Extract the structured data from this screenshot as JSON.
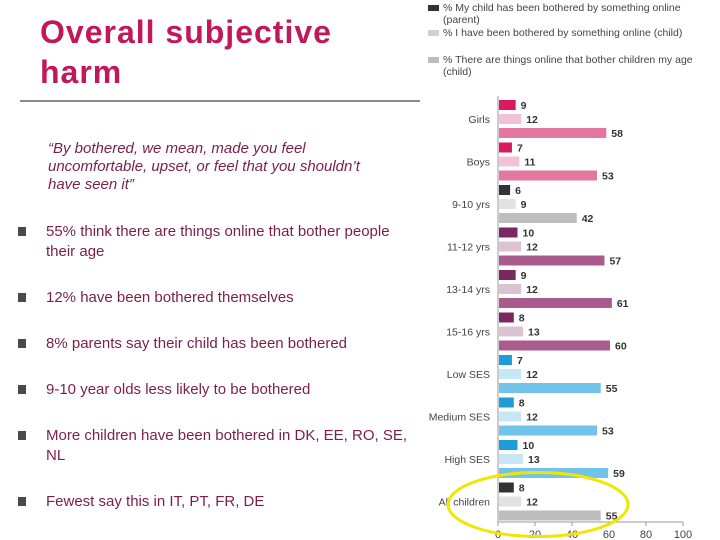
{
  "title": "Overall subjective harm",
  "quote": "“By bothered, we mean, made you feel uncomfortable, upset, or feel that you shouldn’t have seen it”",
  "bullets": [
    "55% think there are things online that bother people their age",
    "12% have been bothered themselves",
    "8% parents say their child has been bothered",
    "9-10 year olds less likely to be bothered",
    "More children have been bothered in DK, EE, RO, SE, NL",
    "Fewest say this in IT, PT, FR, DE"
  ],
  "chart_data": {
    "type": "bar",
    "orientation": "horizontal",
    "legend_position": "top",
    "series": [
      {
        "name": "% My child has been bothered by something online (parent)",
        "legend_color": "#333333",
        "values": [
          9,
          7,
          6,
          10,
          9,
          8,
          7,
          8,
          10,
          8
        ]
      },
      {
        "name": "% I have been bothered by something online (child)",
        "legend_color": "#d0d0d0",
        "values": [
          12,
          11,
          9,
          12,
          12,
          13,
          12,
          12,
          13,
          12
        ]
      },
      {
        "name": "% There are things online that bother children my age (child)",
        "legend_color": "#bcbcbc",
        "values": [
          58,
          53,
          42,
          57,
          61,
          60,
          55,
          53,
          59,
          55
        ]
      }
    ],
    "categories": [
      "Girls",
      "Boys",
      "9-10 yrs",
      "11-12 yrs",
      "13-14 yrs",
      "15-16 yrs",
      "Low SES",
      "Medium SES",
      "High SES",
      "All children"
    ],
    "group_colors": [
      [
        "#d81b60",
        "#f3c1d4",
        "#e3779f"
      ],
      [
        "#d81b60",
        "#f3c1d4",
        "#e3779f"
      ],
      [
        "#333333",
        "#e2e2e2",
        "#bdbdbd"
      ],
      [
        "#7a2860",
        "#dcc3d4",
        "#a95b8d"
      ],
      [
        "#7a2860",
        "#dcc3d4",
        "#a95b8d"
      ],
      [
        "#7a2860",
        "#dcc3d4",
        "#a95b8d"
      ],
      [
        "#1f9bd7",
        "#c7e7f6",
        "#72c3ea"
      ],
      [
        "#1f9bd7",
        "#c7e7f6",
        "#72c3ea"
      ],
      [
        "#1f9bd7",
        "#c7e7f6",
        "#72c3ea"
      ],
      [
        "#333333",
        "#e2e2e2",
        "#bdbdbd"
      ]
    ],
    "xlim": [
      0,
      100
    ],
    "xticks": [
      "0",
      "20",
      "40",
      "60",
      "80",
      "100"
    ],
    "highlight": {
      "target": "All children",
      "color": "#f2e600"
    }
  }
}
